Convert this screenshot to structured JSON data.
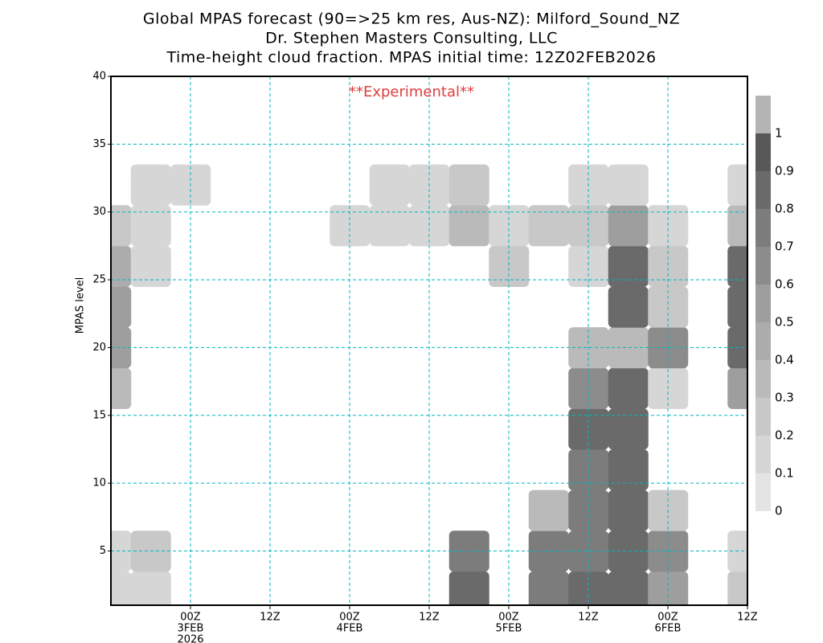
{
  "chart_data": {
    "type": "heatmap",
    "title_lines": [
      "Global MPAS forecast (90=>25 km res, Aus-NZ): Milford_Sound_NZ",
      "Dr. Stephen Masters Consulting, LLC",
      "Time-height cloud fraction.   MPAS initial time: 12Z02FEB2026"
    ],
    "annotation": "**Experimental**",
    "ylabel": "MPAS level",
    "xlim": [
      0,
      96
    ],
    "ylim": [
      1,
      40
    ],
    "xticks": [
      {
        "value": 12,
        "label": "00Z"
      },
      {
        "value": 24,
        "label": "12Z"
      },
      {
        "value": 36,
        "label": "00Z"
      },
      {
        "value": 48,
        "label": "12Z"
      },
      {
        "value": 60,
        "label": "00Z"
      },
      {
        "value": 72,
        "label": "12Z"
      },
      {
        "value": 84,
        "label": "00Z"
      },
      {
        "value": 96,
        "label": "12Z"
      }
    ],
    "x_date_labels": [
      {
        "value": 12,
        "label": "3FEB"
      },
      {
        "value": 36,
        "label": "4FEB"
      },
      {
        "value": 60,
        "label": "5FEB"
      },
      {
        "value": 84,
        "label": "6FEB"
      }
    ],
    "x_year_label": {
      "value": 12,
      "label": "2026"
    },
    "yticks": [
      5,
      10,
      15,
      20,
      25,
      30,
      35,
      40
    ],
    "grid": true,
    "grid_color": "#00b8c0",
    "x": [
      0,
      6,
      12,
      18,
      24,
      30,
      36,
      42,
      48,
      54,
      60,
      66,
      72,
      78,
      84,
      90,
      96
    ],
    "y": [
      2,
      5,
      8,
      11,
      14,
      17,
      20,
      23,
      26,
      29,
      32,
      35,
      38
    ],
    "z": [
      [
        0.15,
        0.15,
        0,
        0,
        0,
        0,
        0,
        0,
        0,
        0.8,
        0,
        0.7,
        0.8,
        0.85,
        0.5,
        0,
        0.2
      ],
      [
        0.15,
        0.2,
        0,
        0,
        0,
        0,
        0,
        0,
        0,
        0.7,
        0,
        0.7,
        0.75,
        0.85,
        0.6,
        0,
        0.1
      ],
      [
        0,
        0,
        0,
        0,
        0,
        0,
        0,
        0,
        0,
        0,
        0,
        0.3,
        0.7,
        0.85,
        0.2,
        0,
        0
      ],
      [
        0,
        0,
        0,
        0,
        0,
        0,
        0,
        0,
        0,
        0,
        0,
        0,
        0.75,
        0.85,
        0,
        0,
        0
      ],
      [
        0,
        0,
        0,
        0,
        0,
        0,
        0,
        0,
        0,
        0,
        0,
        0,
        0.8,
        0.85,
        0,
        0,
        0
      ],
      [
        0.3,
        0,
        0,
        0,
        0,
        0,
        0,
        0,
        0,
        0,
        0,
        0,
        0.6,
        0.85,
        0.1,
        0,
        0.5
      ],
      [
        0.5,
        0,
        0,
        0,
        0,
        0,
        0,
        0,
        0,
        0,
        0,
        0,
        0.3,
        0.3,
        0.6,
        0,
        0.8
      ],
      [
        0.5,
        0,
        0,
        0,
        0,
        0,
        0,
        0,
        0,
        0,
        0,
        0,
        0,
        0.85,
        0.2,
        0,
        0.85
      ],
      [
        0.4,
        0.1,
        0,
        0,
        0,
        0,
        0,
        0,
        0,
        0,
        0.2,
        0,
        0.1,
        0.8,
        0.2,
        0,
        0.8
      ],
      [
        0.2,
        0.1,
        0,
        0,
        0,
        0,
        0.1,
        0.1,
        0.15,
        0.3,
        0.15,
        0.2,
        0.2,
        0.5,
        0.1,
        0,
        0.3
      ],
      [
        0,
        0.1,
        0.1,
        0,
        0,
        0,
        0,
        0.1,
        0.15,
        0.2,
        0,
        0,
        0.15,
        0.15,
        0,
        0,
        0.1
      ],
      [
        0,
        0,
        0,
        0,
        0,
        0,
        0,
        0,
        0,
        0,
        0,
        0,
        0,
        0,
        0,
        0,
        0
      ],
      [
        0,
        0,
        0,
        0,
        0,
        0,
        0,
        0,
        0,
        0,
        0,
        0,
        0,
        0,
        0,
        0,
        0
      ]
    ],
    "colorbar_levels": [
      0,
      0.1,
      0.2,
      0.3,
      0.4,
      0.5,
      0.6,
      0.7,
      0.8,
      0.9,
      1
    ],
    "colorbar_colors": [
      "#e4e4e4",
      "#d6d6d6",
      "#c8c8c8",
      "#bababa",
      "#acacac",
      "#9e9e9e",
      "#8c8c8c",
      "#7c7c7c",
      "#6a6a6a",
      "#585858",
      "#b4b4b4"
    ]
  }
}
